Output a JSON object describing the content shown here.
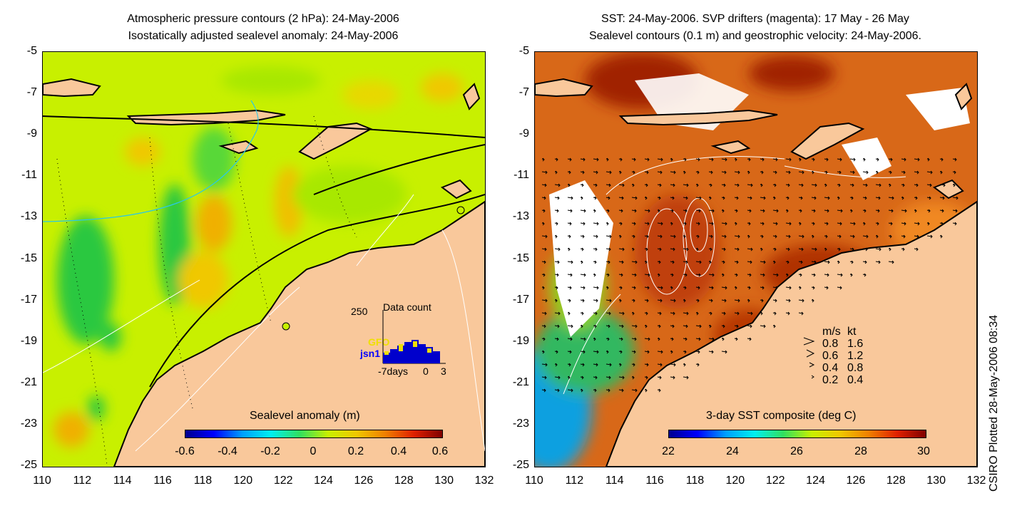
{
  "left_panel": {
    "title_line1": "Atmospheric pressure contours (2 hPa): 24-May-2006",
    "title_line2": "Isostatically adjusted sealevel anomaly: 24-May-2006",
    "colorbar_label": "Sealevel anomaly (m)",
    "colorbar_ticks": [
      "-0.6",
      "-0.4",
      "-0.2",
      "0",
      "0.2",
      "0.4",
      "0.6"
    ],
    "inset": {
      "max_label": "250",
      "title": "Data count",
      "series": [
        "GFO",
        "jsn1"
      ],
      "x_ticks": [
        "-7days",
        "0",
        "3"
      ]
    }
  },
  "right_panel": {
    "title_line1": "SST: 24-May-2006. SVP drifters (magenta): 17 May - 26 May",
    "title_line2": "Sealevel contours (0.1 m) and geostrophic velocity: 24-May-2006.",
    "colorbar_label": "3-day SST composite (deg C)",
    "colorbar_ticks": [
      "22",
      "24",
      "26",
      "28",
      "30"
    ],
    "legend": {
      "header": [
        "m/s",
        "kt"
      ],
      "rows": [
        [
          "0.8",
          "1.6"
        ],
        [
          "0.6",
          "1.2"
        ],
        [
          "0.4",
          "0.8"
        ],
        [
          "0.2",
          "0.4"
        ]
      ]
    }
  },
  "axes": {
    "lat_ticks": [
      "-5",
      "-7",
      "-9",
      "-11",
      "-13",
      "-15",
      "-17",
      "-19",
      "-21",
      "-23",
      "-25"
    ],
    "lon_ticks": [
      "110",
      "112",
      "114",
      "116",
      "118",
      "120",
      "122",
      "124",
      "126",
      "128",
      "130",
      "132"
    ]
  },
  "credit": "CSIRO Plotted 28-May-2006 08:34",
  "colors": {
    "land": "#f9c89b",
    "background": "#c8f000",
    "coast": "#000000",
    "drifter": "#ff00ff"
  }
}
